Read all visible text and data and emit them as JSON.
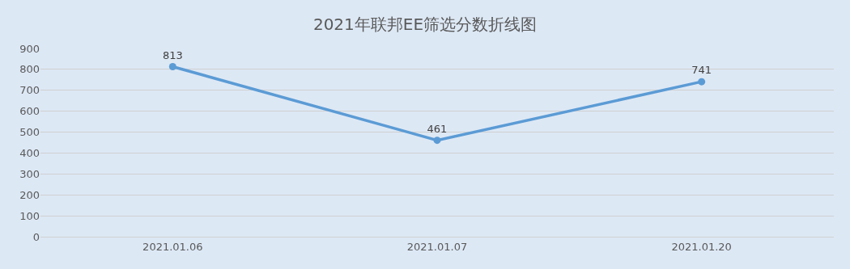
{
  "chart_data": {
    "type": "line",
    "title": "2021年联邦EE筛选分数折线图",
    "categories": [
      "2021.01.06",
      "2021.01.07",
      "2021.01.20"
    ],
    "series": [
      {
        "color": "#5b9bd5",
        "values": [
          813,
          461,
          741
        ]
      }
    ],
    "ylim": [
      0,
      900
    ],
    "yticks": [
      0,
      100,
      200,
      300,
      400,
      500,
      600,
      700,
      800,
      900
    ],
    "grid": "y",
    "legend": false,
    "marker": "circle",
    "line_style": "solid",
    "data_labels": true
  }
}
